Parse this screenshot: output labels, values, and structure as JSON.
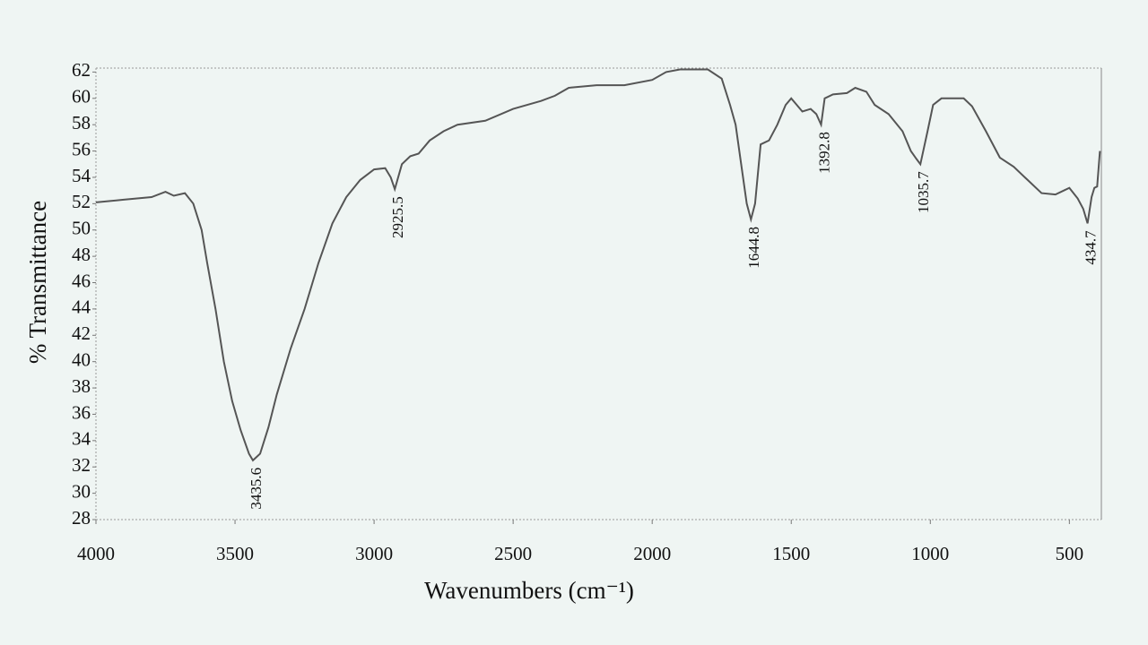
{
  "chart_data": {
    "type": "line",
    "xlabel": "Wavenumbers (cm⁻¹)",
    "ylabel": "% Transmittance",
    "color": "#555555",
    "x": [
      4000,
      3900,
      3800,
      3750,
      3720,
      3680,
      3650,
      3620,
      3600,
      3570,
      3540,
      3510,
      3480,
      3450,
      3435.6,
      3410,
      3380,
      3350,
      3300,
      3250,
      3200,
      3150,
      3100,
      3050,
      3000,
      2960,
      2940,
      2925.5,
      2900,
      2870,
      2840,
      2800,
      2750,
      2700,
      2600,
      2500,
      2400,
      2350,
      2300,
      2200,
      2100,
      2000,
      1950,
      1900,
      1800,
      1750,
      1720,
      1700,
      1680,
      1660,
      1644.8,
      1630,
      1610,
      1580,
      1550,
      1520,
      1500,
      1480,
      1460,
      1430,
      1410,
      1392.8,
      1380,
      1350,
      1300,
      1270,
      1230,
      1200,
      1150,
      1100,
      1070,
      1050,
      1035.7,
      1010,
      990,
      960,
      920,
      880,
      850,
      800,
      750,
      700,
      650,
      600,
      550,
      520,
      500,
      470,
      450,
      434.7,
      420,
      410,
      400,
      390
    ],
    "values": [
      52.1,
      52.3,
      52.5,
      52.9,
      52.6,
      52.8,
      52.0,
      50.0,
      47.5,
      44,
      40,
      37,
      34.8,
      33,
      32.5,
      33,
      35,
      37.5,
      41,
      44,
      47.5,
      50.5,
      52.5,
      53.8,
      54.6,
      54.7,
      54.0,
      53.1,
      55,
      55.6,
      55.8,
      56.8,
      57.5,
      58,
      58.3,
      59.2,
      59.8,
      60.2,
      60.8,
      61.0,
      61.0,
      61.4,
      62.0,
      62.2,
      62.2,
      61.5,
      59.5,
      58,
      55,
      52,
      50.8,
      52,
      56.5,
      56.8,
      58,
      59.5,
      60,
      59.5,
      59,
      59.2,
      58.8,
      58.0,
      60.0,
      60.3,
      60.4,
      60.8,
      60.5,
      59.5,
      58.8,
      57.5,
      56,
      55.4,
      55.0,
      57.5,
      59.5,
      60.0,
      60.0,
      60.0,
      59.4,
      57.5,
      55.5,
      54.8,
      53.8,
      52.8,
      52.7,
      53.0,
      53.2,
      52.4,
      51.6,
      50.5,
      52.5,
      53.2,
      53.3,
      56
    ],
    "xlim": [
      4000,
      385
    ],
    "ylim": [
      28,
      62.3
    ],
    "xticks": [
      4000,
      3500,
      3000,
      2500,
      2000,
      1500,
      1000,
      500
    ],
    "yticks": [
      28,
      30,
      32,
      34,
      36,
      38,
      40,
      42,
      44,
      46,
      48,
      50,
      52,
      54,
      56,
      58,
      60,
      62
    ],
    "annotations": [
      {
        "x": 3435.6,
        "y": 32.5,
        "label": "3435.6"
      },
      {
        "x": 2925.5,
        "y": 53.1,
        "label": "2925.5"
      },
      {
        "x": 1644.8,
        "y": 50.8,
        "label": "1644.8"
      },
      {
        "x": 1392.8,
        "y": 58.0,
        "label": "1392.8"
      },
      {
        "x": 1035.7,
        "y": 55.0,
        "label": "1035.7"
      },
      {
        "x": 434.7,
        "y": 50.5,
        "label": "434.7"
      }
    ]
  }
}
